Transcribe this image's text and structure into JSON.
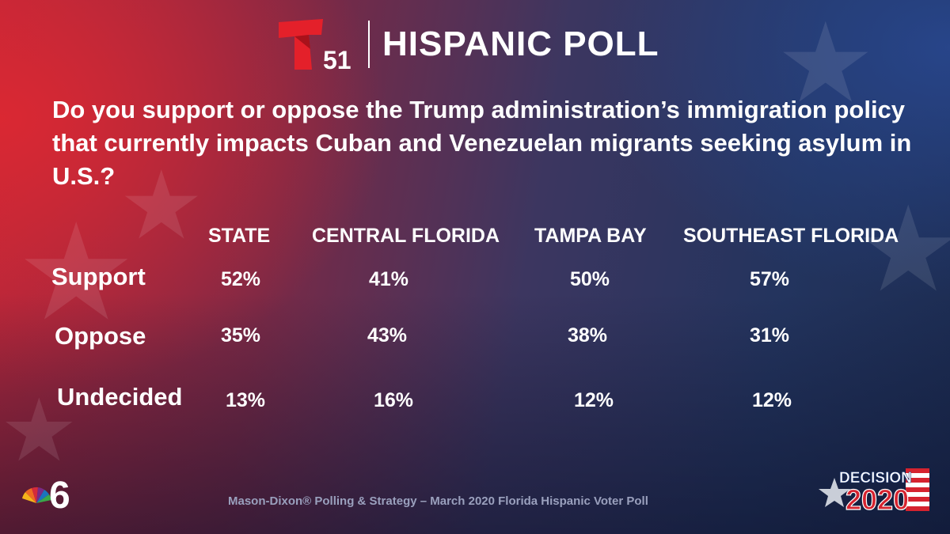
{
  "header": {
    "logo_number": "51",
    "title": "HISPANIC POLL"
  },
  "question": "Do you support or oppose the Trump administration’s immigration policy that currently impacts Cuban and Venezuelan migrants seeking asylum in U.S.?",
  "columns": [
    "STATE",
    "CENTRAL FLORIDA",
    "TAMPA BAY",
    "SOUTHEAST FLORIDA"
  ],
  "rows": [
    {
      "label": "Support",
      "values": [
        "52%",
        "41%",
        "50%",
        "57%"
      ]
    },
    {
      "label": "Oppose",
      "values": [
        "35%",
        "43%",
        "38%",
        "31%"
      ]
    },
    {
      "label": "Undecided",
      "values": [
        "13%",
        "16%",
        "12%",
        "12%"
      ]
    }
  ],
  "footer": "Mason-Dixon® Polling & Strategy – March 2020 Florida Hispanic Voter Poll",
  "logos": {
    "left": "nbc-6-peacock-logo",
    "right": "decision-2020-logo",
    "right_text_top": "DECISION",
    "right_text_bottom": "2020"
  },
  "colors": {
    "telemundo_red": "#e4202a",
    "footer_text": "#9aa0bd",
    "decision_blue": "#1e3a78",
    "decision_red": "#d5232f"
  }
}
